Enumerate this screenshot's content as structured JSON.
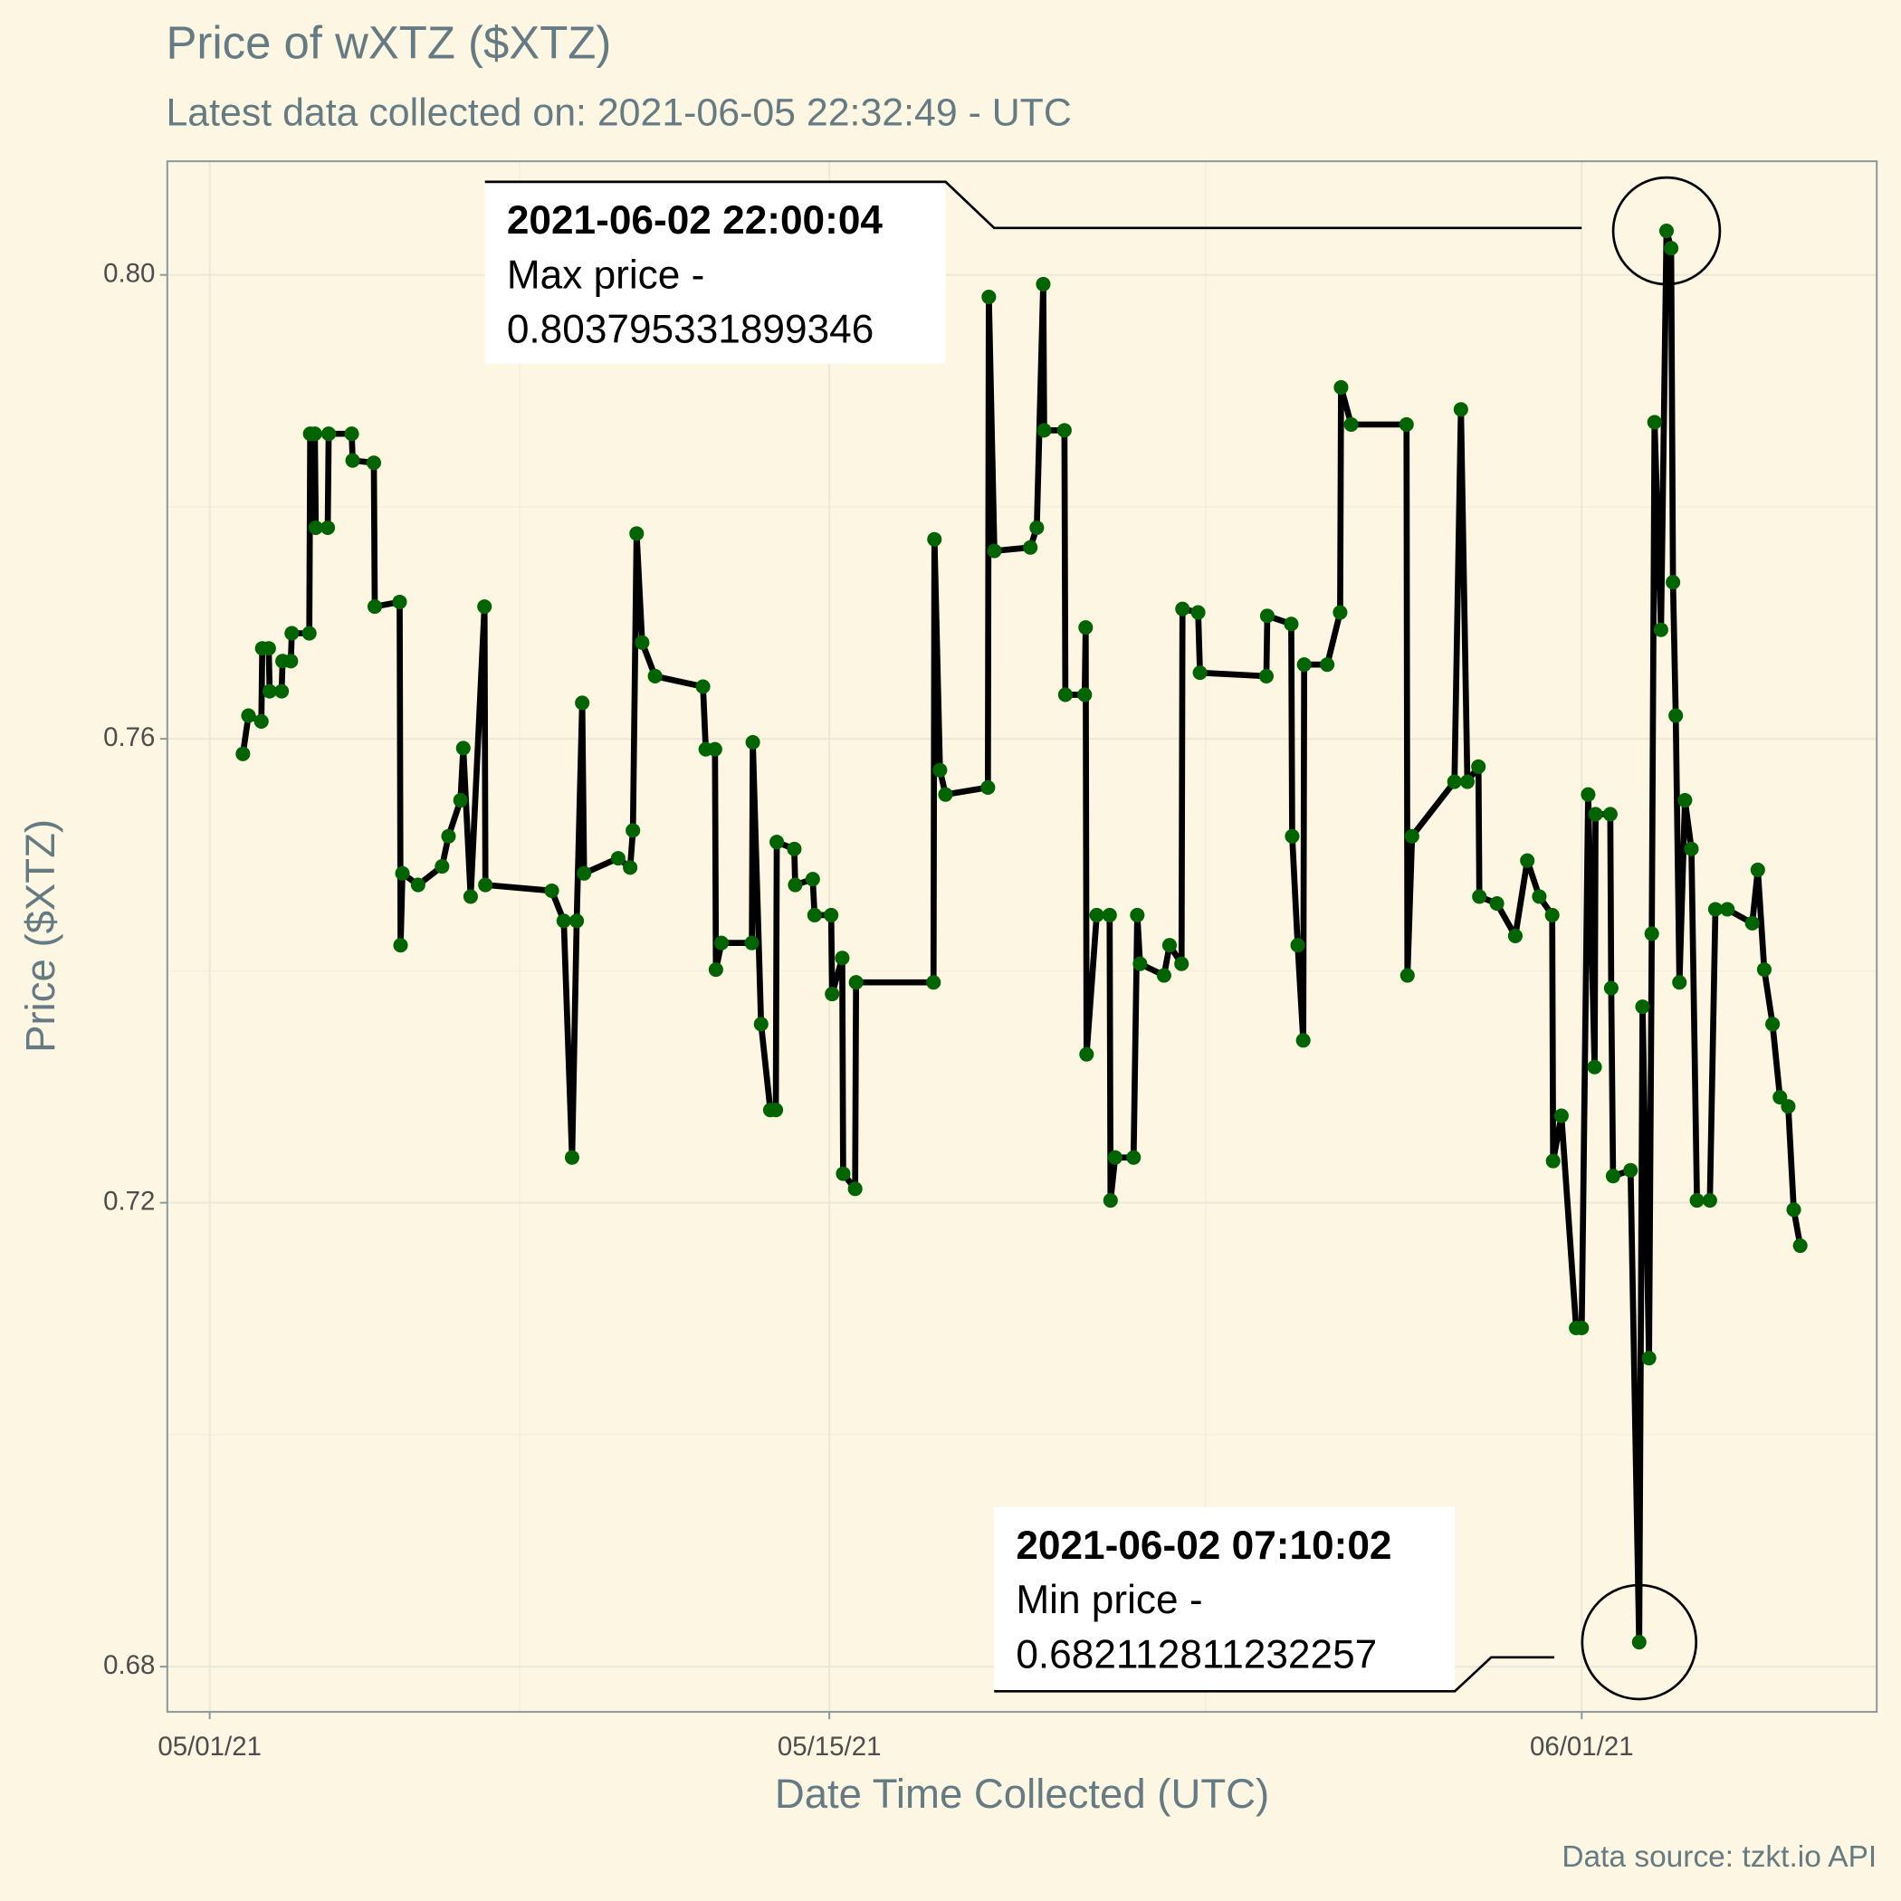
{
  "chart_data": {
    "type": "line",
    "title": "Price of wXTZ ($XTZ)",
    "subtitle": "Latest data collected on: 2021-06-05 22:32:49  - UTC",
    "x_label": "Date Time Collected (UTC)",
    "y_label": "Price ($XTZ)",
    "caption": "Data source: tzkt.io API",
    "line_color": "#000000",
    "point_color": "#006400",
    "grid": true,
    "xlim": [
      "2021-04-30 01:00",
      "2021-06-07 16:00"
    ],
    "xticks": [
      {
        "value": "2021-05-01",
        "label": "05/01/21"
      },
      {
        "value": "2021-05-15",
        "label": "05/15/21"
      },
      {
        "value": "2021-06-01",
        "label": "06/01/21"
      }
    ],
    "minor_xticks": [
      "2021-05-08",
      "2021-05-23 12:00"
    ],
    "ylim": [
      0.6761,
      0.8098
    ],
    "yticks": [
      0.68,
      0.72,
      0.76,
      {
        "value": 0.8,
        "label": "0.80"
      }
    ],
    "minor_yticks": [
      0.7,
      0.74,
      0.78
    ],
    "x": [
      "2021-05-01 18:00",
      "2021-05-01 21:00",
      "2021-05-02 04:00",
      "2021-05-02 04:30",
      "2021-05-02 08:00",
      "2021-05-02 08:30",
      "2021-05-02 15:00",
      "2021-05-02 15:30",
      "2021-05-02 20:00",
      "2021-05-02 20:30",
      "2021-05-03 06:00",
      "2021-05-03 06:30",
      "2021-05-03 09:00",
      "2021-05-03 09:30",
      "2021-05-03 16:00",
      "2021-05-03 16:30",
      "2021-05-04 05:00",
      "2021-05-04 05:30",
      "2021-05-04 17:00",
      "2021-05-04 17:30",
      "2021-05-05 07:00",
      "2021-05-05 07:30",
      "2021-05-05 08:30",
      "2021-05-05 17:00",
      "2021-05-06 06:00",
      "2021-05-06 09:30",
      "2021-05-06 16:00",
      "2021-05-06 17:30",
      "2021-05-06 21:30",
      "2021-05-07 05:00",
      "2021-05-07 05:30",
      "2021-05-08 17:30",
      "2021-05-09 00:00",
      "2021-05-09 04:30",
      "2021-05-09 07:00",
      "2021-05-09 10:00",
      "2021-05-09 11:00",
      "2021-05-10 05:30",
      "2021-05-10 12:00",
      "2021-05-10 13:30",
      "2021-05-10 15:30",
      "2021-05-10 18:30",
      "2021-05-11 01:30",
      "2021-05-12 03:30",
      "2021-05-12 05:00",
      "2021-05-12 10:00",
      "2021-05-12 10:30",
      "2021-05-12 13:30",
      "2021-05-13 06:00",
      "2021-05-13 06:30",
      "2021-05-13 11:00",
      "2021-05-13 16:00",
      "2021-05-13 19:00",
      "2021-05-13 19:30",
      "2021-05-14 05:00",
      "2021-05-14 05:30",
      "2021-05-14 15:00",
      "2021-05-14 16:00",
      "2021-05-15 01:00",
      "2021-05-15 01:30",
      "2021-05-15 07:00",
      "2021-05-15 07:30",
      "2021-05-15 14:00",
      "2021-05-15 14:30",
      "2021-05-17 08:30",
      "2021-05-17 09:00",
      "2021-05-17 12:00",
      "2021-05-17 15:00",
      "2021-05-18 14:00",
      "2021-05-18 14:30",
      "2021-05-18 17:30",
      "2021-05-19 13:00",
      "2021-05-19 16:30",
      "2021-05-19 20:00",
      "2021-05-19 20:30",
      "2021-05-20 07:30",
      "2021-05-20 08:00",
      "2021-05-20 18:30",
      "2021-05-20 19:00",
      "2021-05-20 19:30",
      "2021-05-21 01:00",
      "2021-05-21 08:00",
      "2021-05-21 08:30",
      "2021-05-21 11:00",
      "2021-05-21 21:00",
      "2021-05-21 23:00",
      "2021-05-22 00:30",
      "2021-05-22 13:30",
      "2021-05-22 16:30",
      "2021-05-22 23:00",
      "2021-05-22 23:30",
      "2021-05-23 08:00",
      "2021-05-23 09:00",
      "2021-05-24 21:00",
      "2021-05-24 21:30",
      "2021-05-25 10:30",
      "2021-05-25 11:00",
      "2021-05-25 14:00",
      "2021-05-25 17:00",
      "2021-05-25 17:30",
      "2021-05-26 06:00",
      "2021-05-26 13:00",
      "2021-05-26 13:30",
      "2021-05-26 19:00",
      "2021-05-28 01:00",
      "2021-05-28 01:30",
      "2021-05-28 04:00",
      "2021-05-29 03:00",
      "2021-05-29 06:30",
      "2021-05-29 10:00",
      "2021-05-29 16:00",
      "2021-05-29 16:30",
      "2021-05-30 02:00",
      "2021-05-30 12:00",
      "2021-05-30 18:30",
      "2021-05-31 01:00",
      "2021-05-31 08:00",
      "2021-05-31 08:30",
      "2021-05-31 13:00",
      "2021-05-31 21:00",
      "2021-06-01 00:00",
      "2021-06-01 03:30",
      "2021-06-01 07:00",
      "2021-06-01 07:30",
      "2021-06-01 15:30",
      "2021-06-01 16:00",
      "2021-06-01 17:00",
      "2021-06-02 02:30",
      "2021-06-02 07:10:02",
      "2021-06-02 09:00",
      "2021-06-02 12:30",
      "2021-06-02 14:00",
      "2021-06-02 15:30",
      "2021-06-02 19:00",
      "2021-06-02 22:00:04",
      "2021-06-03 00:30",
      "2021-06-03 01:30",
      "2021-06-03 03:00",
      "2021-06-03 05:00",
      "2021-06-03 08:00",
      "2021-06-03 11:30",
      "2021-06-03 14:30",
      "2021-06-03 21:30",
      "2021-06-04 00:30",
      "2021-06-04 07:00",
      "2021-06-04 20:30",
      "2021-06-04 23:30",
      "2021-06-05 03:00",
      "2021-06-05 07:30",
      "2021-06-05 11:30",
      "2021-06-05 16:00",
      "2021-06-05 19:00",
      "2021-06-05 22:30"
    ],
    "values": [
      0.7587,
      0.762,
      0.7615,
      0.7678,
      0.7678,
      0.7641,
      0.7641,
      0.7667,
      0.7667,
      0.7691,
      0.7691,
      0.7863,
      0.7863,
      0.7782,
      0.7782,
      0.7863,
      0.7863,
      0.784,
      0.7838,
      0.7714,
      0.7718,
      0.7422,
      0.7484,
      0.7474,
      0.749,
      0.7516,
      0.7547,
      0.7592,
      0.7464,
      0.7714,
      0.7474,
      0.7469,
      0.7443,
      0.7239,
      0.7443,
      0.7631,
      0.7484,
      0.7497,
      0.7489,
      0.7521,
      0.7777,
      0.7683,
      0.7654,
      0.7645,
      0.7591,
      0.7591,
      0.7401,
      0.7424,
      0.7424,
      0.7597,
      0.7354,
      0.728,
      0.728,
      0.7511,
      0.7505,
      0.7474,
      0.7479,
      0.7448,
      0.7448,
      0.738,
      0.7411,
      0.7225,
      0.7212,
      0.739,
      0.739,
      0.7772,
      0.7573,
      0.7552,
      0.7558,
      0.7981,
      0.7762,
      0.7765,
      0.7782,
      0.7992,
      0.7866,
      0.7866,
      0.7638,
      0.7638,
      0.7696,
      0.7328,
      0.7448,
      0.7448,
      0.7202,
      0.7239,
      0.7239,
      0.7448,
      0.7406,
      0.7396,
      0.7422,
      0.7406,
      0.7712,
      0.7709,
      0.7657,
      0.7654,
      0.7706,
      0.7699,
      0.7516,
      0.7422,
      0.734,
      0.7664,
      0.7664,
      0.7709,
      0.7903,
      0.7871,
      0.7871,
      0.7396,
      0.7516,
      0.7563,
      0.7884,
      0.7563,
      0.7576,
      0.7464,
      0.7458,
      0.743,
      0.7495,
      0.7464,
      0.7448,
      0.7236,
      0.7275,
      0.7092,
      0.7092,
      0.7552,
      0.7317,
      0.7535,
      0.7535,
      0.7385,
      0.7223,
      0.7228,
      0.682112811232257,
      0.7369,
      0.7066,
      0.7432,
      0.7873,
      0.7694,
      0.803795331899346,
      0.8023,
      0.7735,
      0.762,
      0.739,
      0.7547,
      0.7505,
      0.7202,
      0.7202,
      0.7453,
      0.7453,
      0.7441,
      0.7487,
      0.7401,
      0.7354,
      0.7291,
      0.7283,
      0.7194,
      0.7163
    ],
    "annotations": [
      {
        "x": "2021-06-02 22:00:04",
        "label": "Max price -",
        "y": 0.803795331899346
      },
      {
        "x": "2021-06-02 07:10:02",
        "label": "Min price -",
        "y": 0.682112811232257
      }
    ]
  }
}
